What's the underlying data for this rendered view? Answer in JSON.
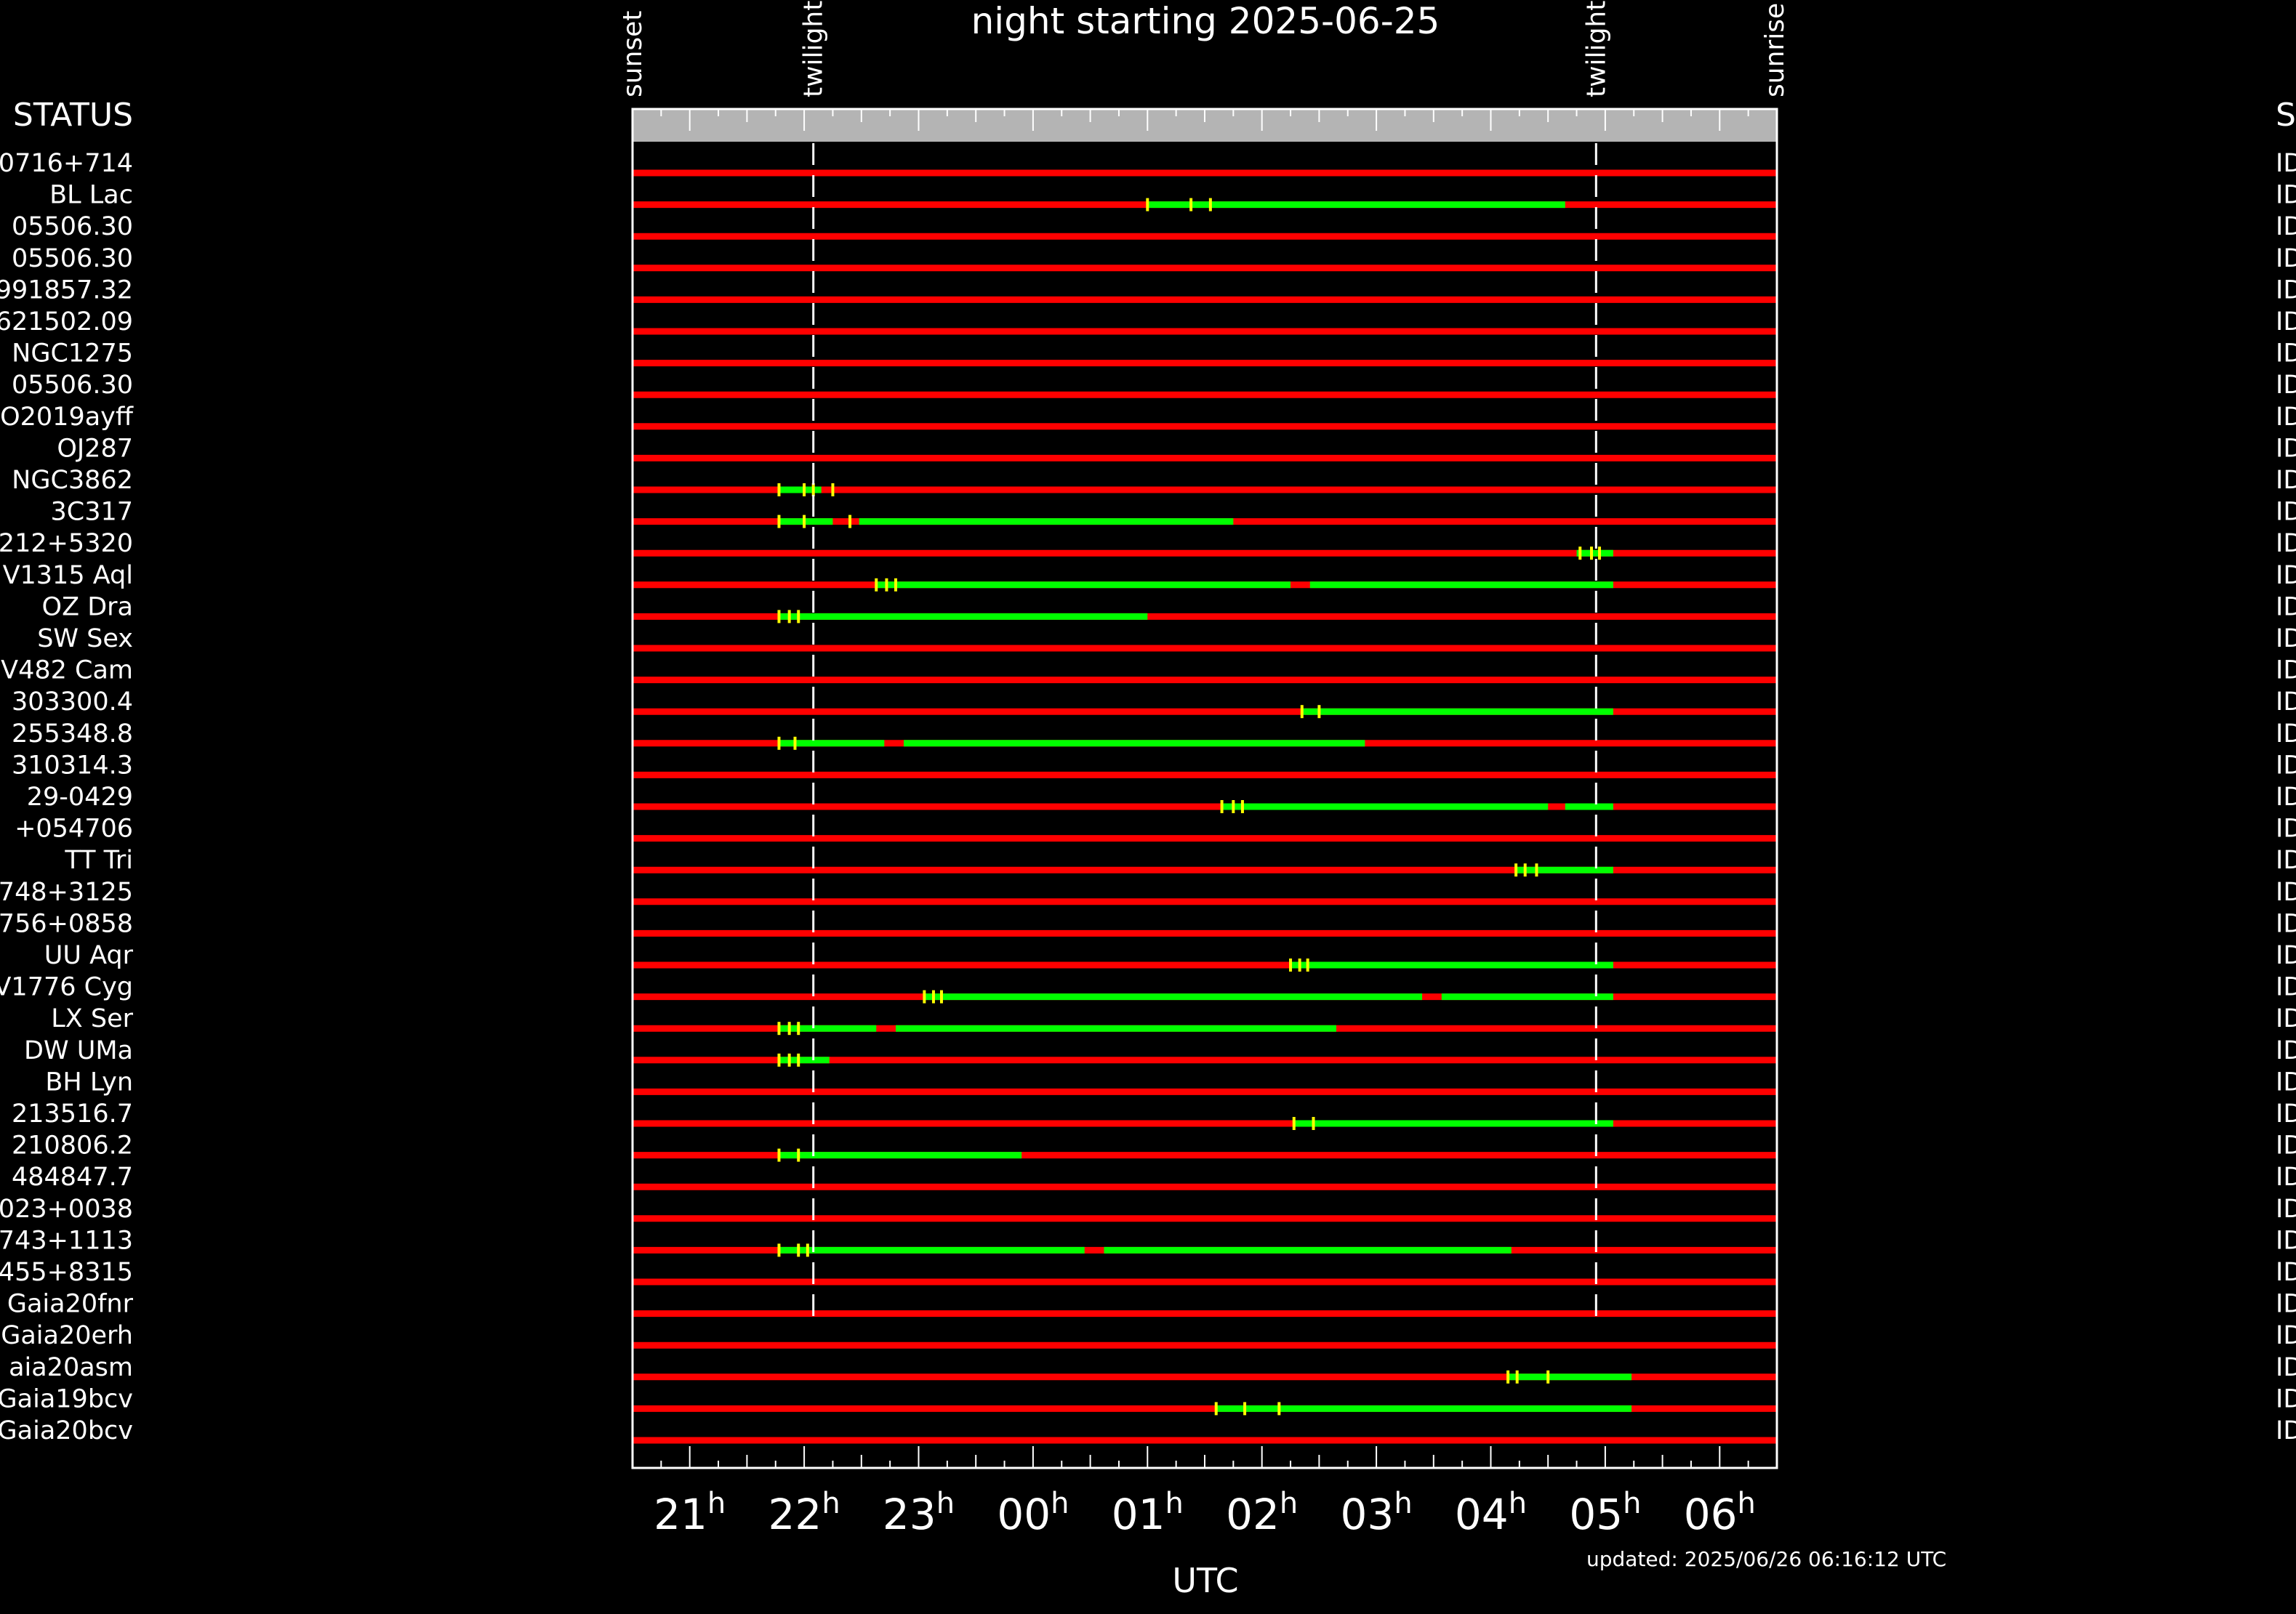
{
  "title": "night starting 2025-06-25",
  "updated": "updated: 2025/06/26 06:16:12 UTC",
  "left_header": "STATUS",
  "right_header": "S",
  "right_column_marker": "ID",
  "colors": {
    "background": "#000000",
    "unobservable": "#ff0000",
    "observable": "#00ff00",
    "observation_tick": "#ffff00",
    "frame": "#ffffff",
    "header_band": "#b4b4b4"
  },
  "chart_data": {
    "type": "timeline",
    "title": "night starting 2025-06-25",
    "xlabel": "UTC",
    "x_range_hours": [
      20.5,
      30.5
    ],
    "x_ticks": [
      {
        "hour": 21,
        "label": "21",
        "sup": "h"
      },
      {
        "hour": 22,
        "label": "22",
        "sup": "h"
      },
      {
        "hour": 23,
        "label": "23",
        "sup": "h"
      },
      {
        "hour": 24,
        "label": "00",
        "sup": "h"
      },
      {
        "hour": 25,
        "label": "01",
        "sup": "h"
      },
      {
        "hour": 26,
        "label": "02",
        "sup": "h"
      },
      {
        "hour": 27,
        "label": "03",
        "sup": "h"
      },
      {
        "hour": 28,
        "label": "04",
        "sup": "h"
      },
      {
        "hour": 29,
        "label": "05",
        "sup": "h"
      },
      {
        "hour": 30,
        "label": "06",
        "sup": "h"
      }
    ],
    "events": [
      {
        "label": "sunset",
        "hour": 20.5,
        "line": false
      },
      {
        "label": "twilight",
        "hour": 22.08,
        "line": true
      },
      {
        "label": "twilight",
        "hour": 28.92,
        "line": true
      },
      {
        "label": "sunrise",
        "hour": 30.48,
        "line": false
      }
    ],
    "rows": [
      {
        "name": "0716+714",
        "obs": [],
        "ticks": []
      },
      {
        "name": "BL Lac",
        "obs": [
          [
            25.0,
            28.65
          ]
        ],
        "ticks": [
          25.0,
          25.38,
          25.55
        ]
      },
      {
        "name": "05506.30",
        "obs": [],
        "ticks": []
      },
      {
        "name": "05506.30",
        "obs": [],
        "ticks": []
      },
      {
        "name": "991857.32",
        "obs": [],
        "ticks": []
      },
      {
        "name": "621502.09",
        "obs": [],
        "ticks": []
      },
      {
        "name": "NGC1275",
        "obs": [],
        "ticks": []
      },
      {
        "name": "05506.30",
        "obs": [],
        "ticks": []
      },
      {
        "name": "O2019ayff",
        "obs": [],
        "ticks": []
      },
      {
        "name": "OJ287",
        "obs": [],
        "ticks": []
      },
      {
        "name": "NGC3862",
        "obs": [
          [
            21.78,
            22.15
          ]
        ],
        "ticks": [
          21.78,
          22.0,
          22.08,
          22.25
        ]
      },
      {
        "name": "3C317",
        "obs": [
          [
            21.78,
            22.25
          ],
          [
            22.48,
            25.75
          ]
        ],
        "ticks": [
          21.78,
          22.0,
          22.4
        ]
      },
      {
        "name": "212+5320",
        "obs": [
          [
            28.75,
            29.07
          ]
        ],
        "ticks": [
          28.78,
          28.88,
          28.95
        ]
      },
      {
        "name": "V1315 Aql",
        "obs": [
          [
            22.63,
            26.25
          ],
          [
            26.42,
            29.07
          ]
        ],
        "ticks": [
          22.63,
          22.72,
          22.8
        ]
      },
      {
        "name": "OZ Dra",
        "obs": [
          [
            21.78,
            25.0
          ]
        ],
        "ticks": [
          21.78,
          21.87,
          21.95
        ]
      },
      {
        "name": "SW Sex",
        "obs": [],
        "ticks": []
      },
      {
        "name": "V482 Cam",
        "obs": [],
        "ticks": []
      },
      {
        "name": "303300.4",
        "obs": [
          [
            26.35,
            29.07
          ]
        ],
        "ticks": [
          26.35,
          26.5
        ]
      },
      {
        "name": "255348.8",
        "obs": [
          [
            21.78,
            22.7
          ],
          [
            22.87,
            26.9
          ]
        ],
        "ticks": [
          21.78,
          21.92
        ]
      },
      {
        "name": "310314.3",
        "obs": [],
        "ticks": []
      },
      {
        "name": "29-0429",
        "obs": [
          [
            25.65,
            28.5
          ],
          [
            28.65,
            29.07
          ]
        ],
        "ticks": [
          25.65,
          25.75,
          25.83
        ]
      },
      {
        "name": "+054706",
        "obs": [],
        "ticks": []
      },
      {
        "name": "TT Tri",
        "obs": [
          [
            28.22,
            29.07
          ]
        ],
        "ticks": [
          28.22,
          28.3,
          28.4
        ]
      },
      {
        "name": "748+3125",
        "obs": [],
        "ticks": []
      },
      {
        "name": "756+0858",
        "obs": [],
        "ticks": []
      },
      {
        "name": "UU Aqr",
        "obs": [
          [
            26.25,
            29.07
          ]
        ],
        "ticks": [
          26.25,
          26.33,
          26.4
        ]
      },
      {
        "name": "V1776 Cyg",
        "obs": [
          [
            23.05,
            27.4
          ],
          [
            27.57,
            29.07
          ]
        ],
        "ticks": [
          23.05,
          23.13,
          23.2
        ]
      },
      {
        "name": "LX Ser",
        "obs": [
          [
            21.78,
            22.63
          ],
          [
            22.8,
            26.65
          ]
        ],
        "ticks": [
          21.78,
          21.87,
          21.95
        ]
      },
      {
        "name": "DW UMa",
        "obs": [
          [
            21.78,
            22.22
          ]
        ],
        "ticks": [
          21.78,
          21.87,
          21.95
        ]
      },
      {
        "name": "BH Lyn",
        "obs": [],
        "ticks": []
      },
      {
        "name": "213516.7",
        "obs": [
          [
            26.28,
            29.07
          ]
        ],
        "ticks": [
          26.28,
          26.45
        ]
      },
      {
        "name": "210806.2",
        "obs": [
          [
            21.78,
            23.9
          ]
        ],
        "ticks": [
          21.78,
          21.95
        ]
      },
      {
        "name": "484847.7",
        "obs": [],
        "ticks": []
      },
      {
        "name": "023+0038",
        "obs": [],
        "ticks": []
      },
      {
        "name": "743+1113",
        "obs": [
          [
            21.78,
            24.45
          ],
          [
            24.62,
            28.18
          ]
        ],
        "ticks": [
          21.78,
          21.95,
          22.03
        ]
      },
      {
        "name": "455+8315",
        "obs": [],
        "ticks": []
      },
      {
        "name": "Gaia20fnr",
        "obs": [],
        "ticks": []
      },
      {
        "name": "Gaia20erh",
        "obs": [],
        "ticks": []
      },
      {
        "name": "aia20asm",
        "obs": [
          [
            28.15,
            29.23
          ]
        ],
        "ticks": [
          28.15,
          28.23,
          28.5
        ]
      },
      {
        "name": "Gaia19bcv",
        "obs": [
          [
            25.6,
            29.23
          ]
        ],
        "ticks": [
          25.6,
          25.85,
          26.15
        ]
      },
      {
        "name": "Gaia20bcv",
        "obs": [],
        "ticks": []
      }
    ]
  }
}
